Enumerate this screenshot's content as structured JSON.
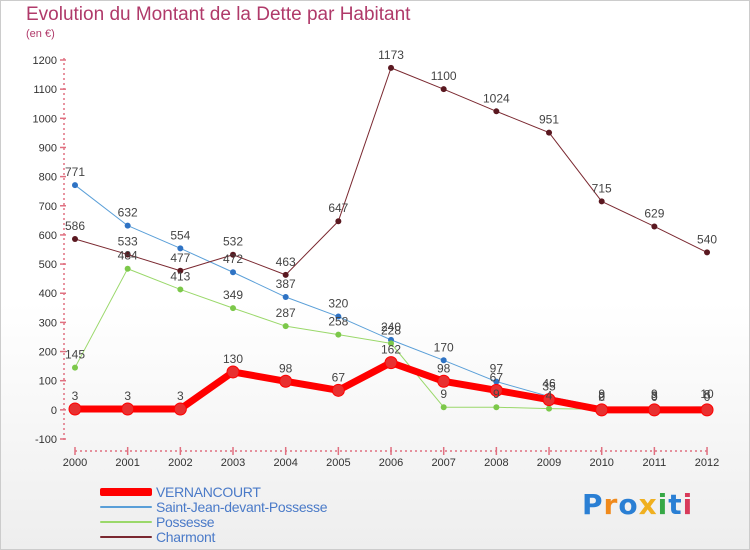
{
  "header": {
    "title": "Evolution du Montant de la Dette par Habitant",
    "unit": "(en €)"
  },
  "brand": {
    "letters": [
      {
        "ch": "P",
        "color": "#2a7fd4"
      },
      {
        "ch": "r",
        "color": "#f08a1c"
      },
      {
        "ch": "o",
        "color": "#2a7fd4"
      },
      {
        "ch": "x",
        "color": "#f0b020"
      },
      {
        "ch": "i",
        "color": "#36a846"
      },
      {
        "ch": "t",
        "color": "#2a7fd4"
      },
      {
        "ch": "i",
        "color": "#d83a5a"
      }
    ]
  },
  "chart_data": {
    "type": "line",
    "title": "Evolution du Montant de la Dette par Habitant",
    "subtitle": "(en €)",
    "x": [
      "2000",
      "2001",
      "2002",
      "2003",
      "2004",
      "2005",
      "2006",
      "2007",
      "2008",
      "2009",
      "2010",
      "2011",
      "2012"
    ],
    "ylim": [
      -100,
      1200
    ],
    "yticks": [
      -100,
      0,
      100,
      200,
      300,
      400,
      500,
      600,
      700,
      800,
      900,
      1000,
      1100,
      1200
    ],
    "grid": false,
    "legend_position": "bottom-left",
    "series": [
      {
        "name": "VERNANCOURT",
        "color": "#ff0000",
        "point_color": "#e83030",
        "width": 7,
        "values": [
          3,
          3,
          3,
          130,
          98,
          67,
          162,
          98,
          67,
          35,
          0,
          0,
          0
        ],
        "labels": [
          "3",
          "3",
          "3",
          "130",
          "98",
          "67",
          "162",
          "98",
          "67",
          "35",
          "0",
          "0",
          "0"
        ]
      },
      {
        "name": "Saint-Jean-devant-Possesse",
        "color": "#5a9fd8",
        "point_color": "#2f73c4",
        "width": 1,
        "values": [
          771,
          632,
          554,
          472,
          387,
          320,
          240,
          170,
          97,
          46,
          9,
          9,
          10
        ],
        "labels": [
          "771",
          "632",
          "554",
          "472",
          "387",
          "320",
          "240",
          "170",
          "97",
          "46",
          "9",
          "9",
          "10"
        ]
      },
      {
        "name": "Possesse",
        "color": "#9ad86a",
        "point_color": "#7cc84a",
        "width": 1,
        "values": [
          145,
          484,
          413,
          349,
          287,
          258,
          228,
          9,
          9,
          4,
          2,
          3,
          8
        ],
        "labels": [
          "145",
          "484",
          "413",
          "349",
          "287",
          "258",
          "228",
          "9",
          "9",
          "4",
          "2",
          "3",
          "8"
        ]
      },
      {
        "name": "Charmont",
        "color": "#7a2830",
        "point_color": "#5a1820",
        "width": 1,
        "values": [
          586,
          533,
          477,
          532,
          463,
          647,
          1173,
          1100,
          1024,
          951,
          715,
          629,
          540
        ],
        "labels": [
          "586",
          "533",
          "477",
          "532",
          "463",
          "647",
          "1173",
          "1100",
          "1024",
          "951",
          "715",
          "629",
          "540"
        ]
      }
    ]
  }
}
